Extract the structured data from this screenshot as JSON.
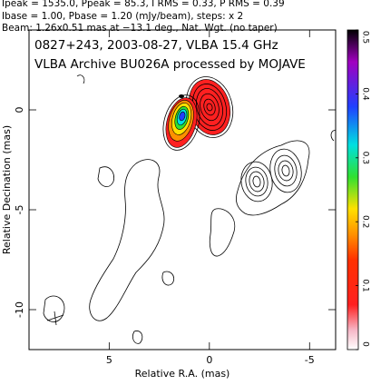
{
  "header": [
    "Ipeak = 1535.0, Ppeak = 85.3, I RMS = 0.33, P RMS = 0.39",
    "Ibase = 1.00, Pbase = 1.20 (mJy/beam), steps: x 2",
    "Beam: 1.26x0.51 mas at −13.1 deg., Nat. Wgt. (no taper)"
  ],
  "chart_data": {
    "type": "contour",
    "title": [
      "0827+243, 2003-08-27, VLBA 15.4 GHz",
      "VLBA Archive BU026A processed by MOJAVE"
    ],
    "xlabel": "Relative R.A. (mas)",
    "ylabel": "Relative Decination (mas)",
    "xlim": [
      9,
      -6.3
    ],
    "ylim": [
      -12,
      4
    ],
    "xticks": [
      5,
      0,
      -5
    ],
    "yticks": [
      0,
      -5,
      -10
    ],
    "colorbar": {
      "lim": [
        0,
        0.5
      ],
      "ticks": [
        0,
        0.1,
        0.2,
        0.3,
        0.4,
        0.5
      ]
    }
  }
}
